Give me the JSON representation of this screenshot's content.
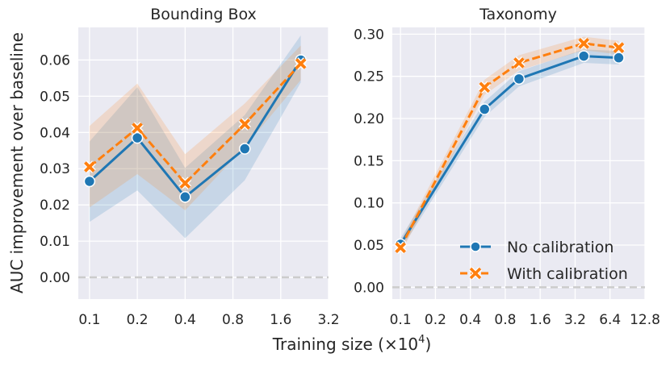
{
  "figure": {
    "ylabel": "AUC improvement over baseline",
    "xlabel_main": "Training size (×10",
    "xlabel_exp": "4",
    "xlabel_end": ")"
  },
  "legend": {
    "position": "lower-right of right panel",
    "entries": [
      {
        "label": "No calibration",
        "color": "#1f77b4",
        "marker": "circle",
        "dash": "solid"
      },
      {
        "label": "With calibration",
        "color": "#ff7f0e",
        "marker": "x",
        "dash": "dashed"
      }
    ]
  },
  "colors": {
    "panel_bg": "#eaeaf2",
    "grid": "#ffffff",
    "baseline": "#cccccc",
    "series_no_cal": "#1f77b4",
    "series_with_cal": "#ff7f0e"
  },
  "chart_data": [
    {
      "type": "line",
      "title": "Bounding Box",
      "xscale": "log2",
      "xlim": [
        0.085,
        3.2
      ],
      "ylim": [
        -0.006,
        0.069
      ],
      "xticks": [
        0.1,
        0.2,
        0.4,
        0.8,
        1.6,
        3.2
      ],
      "xtick_labels": [
        "0.1",
        "0.2",
        "0.4",
        "0.8",
        "1.6",
        "3.2"
      ],
      "yticks": [
        0.0,
        0.01,
        0.02,
        0.03,
        0.04,
        0.05,
        0.06
      ],
      "ytick_labels": [
        "0.00",
        "0.01",
        "0.02",
        "0.03",
        "0.04",
        "0.05",
        "0.06"
      ],
      "baseline_y": 0.0,
      "series": [
        {
          "name": "No calibration",
          "x": [
            0.1,
            0.2,
            0.4,
            0.95,
            2.14
          ],
          "y": [
            0.0265,
            0.0385,
            0.0222,
            0.0355,
            0.06
          ],
          "lower": [
            0.0153,
            0.024,
            0.0108,
            0.0268,
            0.0538
          ],
          "upper": [
            0.0375,
            0.0525,
            0.0302,
            0.0448,
            0.0668
          ]
        },
        {
          "name": "With calibration",
          "x": [
            0.1,
            0.2,
            0.4,
            0.95,
            2.14
          ],
          "y": [
            0.0305,
            0.0412,
            0.026,
            0.0423,
            0.059
          ],
          "lower": [
            0.0193,
            0.0285,
            0.0185,
            0.036,
            0.0545
          ],
          "upper": [
            0.0418,
            0.0535,
            0.034,
            0.048,
            0.064
          ]
        }
      ]
    },
    {
      "type": "line",
      "title": "Taxonomy",
      "xscale": "log2",
      "xlim": [
        0.085,
        12.8
      ],
      "ylim": [
        -0.014,
        0.308
      ],
      "xticks": [
        0.1,
        0.2,
        0.4,
        0.8,
        1.6,
        3.2,
        6.4,
        12.8
      ],
      "xtick_labels": [
        "0.1",
        "0.2",
        "0.4",
        "0.8",
        "1.6",
        "3.2",
        "6.4",
        "12.8"
      ],
      "yticks": [
        0.0,
        0.05,
        0.1,
        0.15,
        0.2,
        0.25,
        0.3
      ],
      "ytick_labels": [
        "0.00",
        "0.05",
        "0.10",
        "0.15",
        "0.20",
        "0.25",
        "0.30"
      ],
      "baseline_y": 0.0,
      "series": [
        {
          "name": "No calibration",
          "x": [
            0.1,
            0.53,
            1.05,
            3.8,
            7.6
          ],
          "y": [
            0.051,
            0.211,
            0.247,
            0.274,
            0.272
          ],
          "lower": [
            0.044,
            0.202,
            0.238,
            0.266,
            0.264
          ],
          "upper": [
            0.058,
            0.22,
            0.256,
            0.282,
            0.28
          ]
        },
        {
          "name": "With calibration",
          "x": [
            0.1,
            0.53,
            1.05,
            3.8,
            7.6
          ],
          "y": [
            0.047,
            0.237,
            0.266,
            0.289,
            0.284
          ],
          "lower": [
            0.04,
            0.228,
            0.257,
            0.281,
            0.276
          ],
          "upper": [
            0.054,
            0.246,
            0.275,
            0.297,
            0.292
          ]
        }
      ]
    }
  ]
}
